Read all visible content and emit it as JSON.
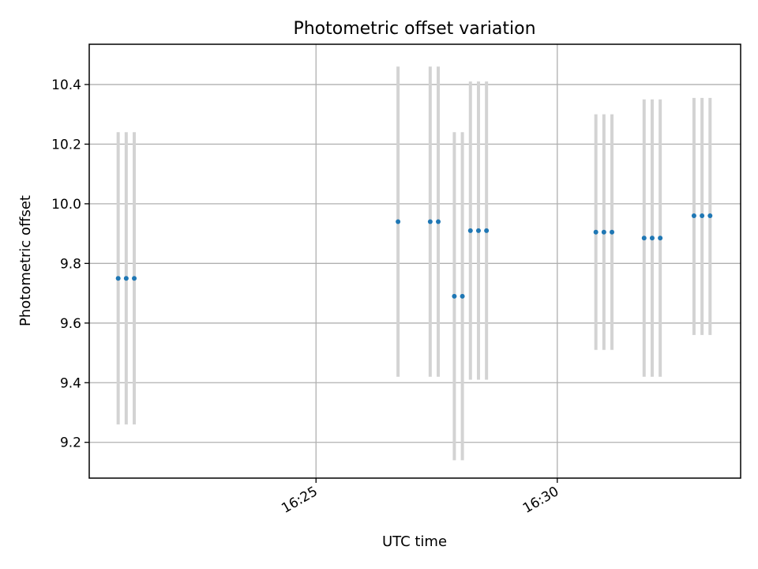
{
  "chart_data": {
    "type": "scatter",
    "title": "Photometric offset variation",
    "xlabel": "UTC time",
    "ylabel": "Photometric offset",
    "xlim": [
      "16:20:18",
      "16:33:48"
    ],
    "ylim": [
      9.08,
      10.535
    ],
    "xticks": [
      "16:25",
      "16:30"
    ],
    "yticks": [
      "9.2",
      "9.4",
      "9.6",
      "9.8",
      "10.0",
      "10.2",
      "10.4"
    ],
    "grid": true,
    "colors": {
      "point": "#1f77b4",
      "errorbar": "#d3d3d3",
      "grid": "#b0b0b0",
      "axes": "#000000"
    },
    "points": [
      {
        "x": "16:20:54",
        "y": 9.75,
        "y_low": 9.26,
        "y_high": 10.24
      },
      {
        "x": "16:21:04",
        "y": 9.75,
        "y_low": 9.26,
        "y_high": 10.24
      },
      {
        "x": "16:21:14",
        "y": 9.75,
        "y_low": 9.26,
        "y_high": 10.24
      },
      {
        "x": "16:26:42",
        "y": 9.94,
        "y_low": 9.42,
        "y_high": 10.46
      },
      {
        "x": "16:27:22",
        "y": 9.94,
        "y_low": 9.42,
        "y_high": 10.46
      },
      {
        "x": "16:27:32",
        "y": 9.94,
        "y_low": 9.42,
        "y_high": 10.46
      },
      {
        "x": "16:27:52",
        "y": 9.69,
        "y_low": 9.14,
        "y_high": 10.24
      },
      {
        "x": "16:28:02",
        "y": 9.69,
        "y_low": 9.14,
        "y_high": 10.24
      },
      {
        "x": "16:28:12",
        "y": 9.91,
        "y_low": 9.41,
        "y_high": 10.41
      },
      {
        "x": "16:28:22",
        "y": 9.91,
        "y_low": 9.41,
        "y_high": 10.41
      },
      {
        "x": "16:28:32",
        "y": 9.91,
        "y_low": 9.41,
        "y_high": 10.41
      },
      {
        "x": "16:30:48",
        "y": 9.905,
        "y_low": 9.51,
        "y_high": 10.3
      },
      {
        "x": "16:30:58",
        "y": 9.905,
        "y_low": 9.51,
        "y_high": 10.3
      },
      {
        "x": "16:31:08",
        "y": 9.905,
        "y_low": 9.51,
        "y_high": 10.3
      },
      {
        "x": "16:31:48",
        "y": 9.885,
        "y_low": 9.42,
        "y_high": 10.35
      },
      {
        "x": "16:31:58",
        "y": 9.885,
        "y_low": 9.42,
        "y_high": 10.35
      },
      {
        "x": "16:32:08",
        "y": 9.885,
        "y_low": 9.42,
        "y_high": 10.35
      },
      {
        "x": "16:32:50",
        "y": 9.96,
        "y_low": 9.56,
        "y_high": 10.355
      },
      {
        "x": "16:33:00",
        "y": 9.96,
        "y_low": 9.56,
        "y_high": 10.355
      },
      {
        "x": "16:33:10",
        "y": 9.96,
        "y_low": 9.56,
        "y_high": 10.355
      }
    ]
  }
}
